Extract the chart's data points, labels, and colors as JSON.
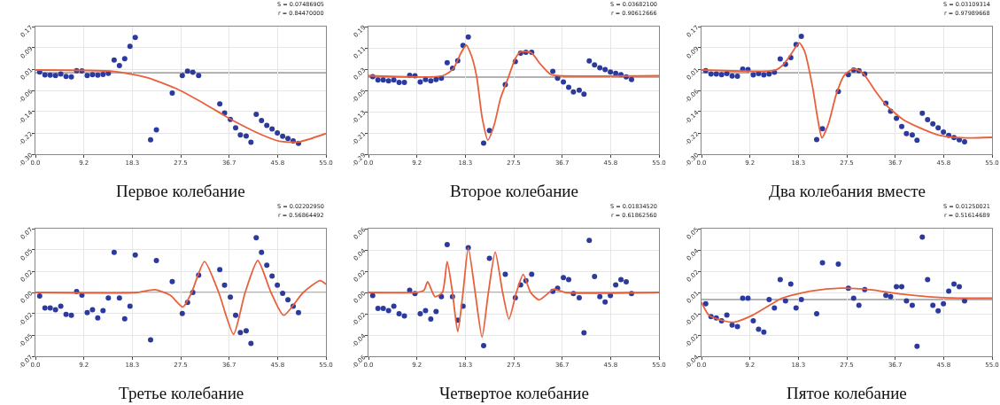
{
  "chart_data": [
    {
      "type": "scatter",
      "title": "Первое колебание",
      "annotations": [
        "S = 0.07486905",
        "r = 0.84470000"
      ],
      "xlim": [
        0,
        55
      ],
      "xticks": [
        {
          "value": 0,
          "label": "0.0"
        },
        {
          "value": 9.17,
          "label": "9.2"
        },
        {
          "value": 18.33,
          "label": "18.3"
        },
        {
          "value": 27.5,
          "label": "27.5"
        },
        {
          "value": 36.67,
          "label": "36.7"
        },
        {
          "value": 45.83,
          "label": "45.8"
        },
        {
          "value": 55,
          "label": "55.0"
        }
      ],
      "ylim": [
        -0.3,
        0.17
      ],
      "yticks": [
        {
          "value": 0.17,
          "label": "0.17"
        },
        {
          "value": 0.0917,
          "label": "0.09"
        },
        {
          "value": 0.0133,
          "label": "0.01"
        },
        {
          "value": -0.065,
          "label": "-0.06"
        },
        {
          "value": -0.1433,
          "label": "-0.14"
        },
        {
          "value": -0.2217,
          "label": "-0.22"
        },
        {
          "value": -0.3,
          "label": "-0.30"
        }
      ],
      "grid": true,
      "ref_lines": [
        {
          "axis": "y",
          "value": 0,
          "color": "#666666"
        }
      ],
      "series": [
        {
          "color": "#2b3a9c",
          "marker": "circle",
          "x": [
            0.8,
            1.8,
            2.8,
            3.8,
            4.8,
            5.8,
            6.8,
            7.8,
            8.8,
            9.8,
            10.8,
            11.8,
            12.8,
            13.8,
            14.9,
            15.9,
            16.9,
            17.9,
            18.9,
            21.8,
            22.9,
            25.9,
            27.8,
            28.8,
            29.8,
            30.9,
            34.9,
            35.8,
            36.9,
            37.9,
            38.8,
            39.9,
            40.8,
            41.8,
            42.8,
            43.8,
            44.8,
            45.8,
            46.8,
            47.8,
            48.8,
            49.8
          ],
          "values": [
            0.003,
            -0.008,
            -0.009,
            -0.01,
            -0.005,
            -0.014,
            -0.015,
            0.008,
            0.007,
            -0.01,
            -0.007,
            -0.009,
            -0.006,
            -0.002,
            0.047,
            0.026,
            0.052,
            0.097,
            0.13,
            -0.247,
            -0.21,
            -0.075,
            -0.01,
            0.006,
            0.002,
            -0.01,
            -0.115,
            -0.148,
            -0.172,
            -0.203,
            -0.229,
            -0.233,
            -0.256,
            -0.153,
            -0.176,
            -0.194,
            -0.207,
            -0.222,
            -0.234,
            -0.242,
            -0.251,
            -0.26
          ]
        },
        {
          "type": "line",
          "color": "#e8603c",
          "marker": "none",
          "x": [
            0,
            14.9,
            21,
            26.5,
            31.9,
            37.4,
            42.9,
            46.2,
            49.8,
            55
          ],
          "values": [
            0.01,
            0.005,
            -0.017,
            -0.057,
            -0.113,
            -0.176,
            -0.229,
            -0.252,
            -0.255,
            -0.224
          ]
        }
      ]
    },
    {
      "type": "scatter",
      "title": "Второе колебание",
      "annotations": [
        "S = 0.03682100",
        "r = 0.90612666"
      ],
      "xlim": [
        0,
        55
      ],
      "xticks": [
        {
          "value": 0,
          "label": "0.0"
        },
        {
          "value": 9.17,
          "label": "9.2"
        },
        {
          "value": 18.33,
          "label": "18.3"
        },
        {
          "value": 27.5,
          "label": "27.5"
        },
        {
          "value": 36.67,
          "label": "36.7"
        },
        {
          "value": 45.83,
          "label": "45.8"
        },
        {
          "value": 55,
          "label": "55.0"
        }
      ],
      "ylim": [
        -0.29,
        0.19
      ],
      "yticks": [
        0.19,
        0.11,
        0.03,
        -0.05,
        -0.13,
        -0.21,
        -0.29
      ],
      "grid": true,
      "ref_lines": [
        {
          "axis": "y",
          "value": 0,
          "color": "#666666"
        }
      ],
      "series": [
        {
          "color": "#2b3a9c",
          "marker": "circle",
          "x": [
            0.8,
            1.8,
            2.8,
            3.8,
            4.8,
            5.8,
            6.8,
            7.8,
            8.8,
            9.8,
            10.8,
            11.8,
            12.8,
            13.8,
            14.9,
            15.9,
            16.9,
            17.9,
            18.9,
            21.8,
            22.9,
            25.9,
            27.8,
            28.8,
            29.8,
            30.9,
            34.9,
            35.8,
            36.9,
            37.9,
            38.8,
            39.9,
            40.8,
            41.8,
            42.8,
            43.8,
            44.8,
            45.8,
            46.8,
            47.8,
            48.8,
            49.8
          ],
          "values": [
            0.002,
            -0.011,
            -0.011,
            -0.014,
            -0.011,
            -0.02,
            -0.02,
            0.007,
            0.005,
            -0.018,
            -0.009,
            -0.014,
            -0.009,
            -0.004,
            0.054,
            0.033,
            0.062,
            0.119,
            0.151,
            -0.248,
            -0.201,
            -0.028,
            0.058,
            0.09,
            0.093,
            0.093,
            0.022,
            -0.004,
            -0.018,
            -0.038,
            -0.056,
            -0.049,
            -0.064,
            0.061,
            0.046,
            0.035,
            0.028,
            0.019,
            0.014,
            0.009,
            0.001,
            -0.009
          ]
        },
        {
          "type": "line",
          "color": "#e8603c",
          "marker": "none",
          "x": [
            0,
            14,
            16,
            17.5,
            18.5,
            19.5,
            20.5,
            21.5,
            22.6,
            23.8,
            25,
            26.5,
            27.8,
            28.8,
            30.8,
            32.5,
            34.5,
            36,
            55
          ],
          "values": [
            0.005,
            0.005,
            0.03,
            0.09,
            0.12,
            0.08,
            0.0,
            -0.15,
            -0.237,
            -0.18,
            -0.08,
            0.0,
            0.07,
            0.095,
            0.092,
            0.05,
            0.01,
            0.005,
            0.005
          ]
        }
      ]
    },
    {
      "type": "scatter",
      "title": "Два колебания вместе",
      "annotations": [
        "S = 0.03109314",
        "r = 0.97989668"
      ],
      "xlim": [
        0,
        55
      ],
      "xticks": [
        {
          "value": 0,
          "label": "0.0"
        },
        {
          "value": 9.17,
          "label": "9.2"
        },
        {
          "value": 18.33,
          "label": "18.3"
        },
        {
          "value": 27.5,
          "label": "27.5"
        },
        {
          "value": 36.67,
          "label": "36.7"
        },
        {
          "value": 45.83,
          "label": "45.8"
        },
        {
          "value": 55,
          "label": "55.0"
        }
      ],
      "ylim": [
        -0.3,
        0.17
      ],
      "yticks": [
        {
          "value": 0.17,
          "label": "0.17"
        },
        {
          "value": 0.0917,
          "label": "0.09"
        },
        {
          "value": 0.0133,
          "label": "0.01"
        },
        {
          "value": -0.065,
          "label": "-0.06"
        },
        {
          "value": -0.1433,
          "label": "-0.14"
        },
        {
          "value": -0.2217,
          "label": "-0.22"
        },
        {
          "value": -0.3,
          "label": "-0.30"
        }
      ],
      "grid": true,
      "ref_lines": [
        {
          "axis": "y",
          "value": 0,
          "color": "#666666"
        }
      ],
      "series": [
        {
          "color": "#2b3a9c",
          "marker": "circle",
          "x": [
            0.8,
            1.8,
            2.8,
            3.8,
            4.8,
            5.8,
            6.8,
            7.8,
            8.8,
            9.8,
            10.8,
            11.8,
            12.8,
            13.8,
            14.9,
            15.9,
            16.9,
            17.9,
            18.9,
            21.8,
            22.9,
            25.9,
            27.8,
            28.8,
            29.8,
            30.9,
            34.9,
            35.8,
            36.9,
            37.9,
            38.8,
            39.9,
            40.8,
            41.8,
            42.8,
            43.8,
            44.8,
            45.8,
            46.8,
            47.8,
            48.8,
            49.8
          ],
          "values": [
            0.008,
            -0.005,
            -0.005,
            -0.007,
            -0.003,
            -0.012,
            -0.013,
            0.013,
            0.012,
            -0.008,
            -0.003,
            -0.008,
            -0.005,
            0.002,
            0.051,
            0.031,
            0.056,
            0.104,
            0.134,
            -0.246,
            -0.206,
            -0.069,
            -0.007,
            0.01,
            0.008,
            -0.005,
            -0.112,
            -0.142,
            -0.168,
            -0.198,
            -0.224,
            -0.229,
            -0.249,
            -0.149,
            -0.173,
            -0.188,
            -0.203,
            -0.218,
            -0.231,
            -0.239,
            -0.247,
            -0.254
          ]
        },
        {
          "type": "line",
          "color": "#e8603c",
          "marker": "none",
          "x": [
            0,
            14,
            15.5,
            17,
            18.5,
            19.5,
            21,
            22,
            22.8,
            24,
            25.5,
            27,
            28.8,
            30.5,
            33,
            35,
            38,
            41,
            45,
            50,
            55
          ],
          "values": [
            0.01,
            0.01,
            0.03,
            0.07,
            0.11,
            0.08,
            -0.05,
            -0.17,
            -0.24,
            -0.19,
            -0.08,
            -0.01,
            0.015,
            0.0,
            -0.07,
            -0.12,
            -0.17,
            -0.2,
            -0.23,
            -0.24,
            -0.238
          ]
        }
      ]
    },
    {
      "type": "scatter",
      "title": "Третье колебание",
      "annotations": [
        "S = 0.02202950",
        "r = 0.56864492"
      ],
      "xlim": [
        0,
        55
      ],
      "xticks": [
        {
          "value": 0,
          "label": "0.0"
        },
        {
          "value": 9.17,
          "label": "9.2"
        },
        {
          "value": 18.33,
          "label": "18.3"
        },
        {
          "value": 27.5,
          "label": "27.5"
        },
        {
          "value": 36.67,
          "label": "36.7"
        },
        {
          "value": 45.83,
          "label": "45.8"
        },
        {
          "value": 55,
          "label": "55.0"
        }
      ],
      "ylim": [
        -0.07,
        0.07
      ],
      "yticks": [
        {
          "value": 0.07,
          "label": "0.07"
        },
        {
          "value": 0.0467,
          "label": "0.05"
        },
        {
          "value": 0.0233,
          "label": "0.02"
        },
        {
          "value": 0,
          "label": "0.00"
        },
        {
          "value": -0.0233,
          "label": "-0.02"
        },
        {
          "value": -0.0467,
          "label": "-0.05"
        },
        {
          "value": -0.07,
          "label": "-0.07"
        }
      ],
      "grid": true,
      "ref_lines": [
        {
          "axis": "y",
          "value": 0,
          "color": "#666666"
        }
      ],
      "series": [
        {
          "color": "#2b3a9c",
          "marker": "circle",
          "x": [
            0.8,
            1.8,
            2.8,
            3.8,
            4.8,
            5.8,
            6.8,
            7.8,
            8.8,
            9.8,
            10.8,
            11.8,
            12.8,
            13.8,
            14.9,
            15.9,
            16.9,
            17.9,
            18.9,
            21.8,
            22.9,
            25.9,
            27.8,
            28.8,
            29.8,
            30.9,
            34.9,
            35.8,
            36.9,
            37.9,
            38.8,
            39.9,
            40.8,
            41.8,
            42.8,
            43.8,
            44.8,
            45.8,
            46.8,
            47.8,
            48.8,
            49.8
          ],
          "values": [
            -0.004,
            -0.017,
            -0.017,
            -0.019,
            -0.015,
            -0.024,
            -0.025,
            0.001,
            -0.003,
            -0.022,
            -0.019,
            -0.028,
            -0.02,
            -0.006,
            0.044,
            -0.006,
            -0.029,
            -0.015,
            0.041,
            -0.052,
            0.035,
            0.012,
            -0.023,
            -0.011,
            0.0,
            0.019,
            0.025,
            0.008,
            -0.005,
            -0.025,
            -0.044,
            -0.042,
            -0.056,
            0.06,
            0.044,
            0.03,
            0.018,
            0.008,
            -0.001,
            -0.008,
            -0.015,
            -0.022
          ]
        },
        {
          "type": "line",
          "color": "#e8603c",
          "marker": "none",
          "x": [
            0,
            19.3,
            22.6,
            25.5,
            27.9,
            29.5,
            32,
            34.7,
            37.5,
            39.7,
            42.1,
            44.6,
            47,
            50.7,
            53.9,
            55
          ],
          "values": [
            0.0,
            0.0,
            0.003,
            -0.003,
            -0.016,
            -0.001,
            0.034,
            0.0,
            -0.046,
            0.0,
            0.035,
            0.0,
            -0.025,
            0.0,
            0.013,
            0.009
          ]
        }
      ]
    },
    {
      "type": "scatter",
      "title": "Четвертое колебание",
      "annotations": [
        "S = 0.01834520",
        "r = 0.61862560"
      ],
      "xlim": [
        0,
        55
      ],
      "xticks": [
        {
          "value": 0,
          "label": "0.0"
        },
        {
          "value": 9.17,
          "label": "9.2"
        },
        {
          "value": 18.33,
          "label": "18.3"
        },
        {
          "value": 27.5,
          "label": "27.5"
        },
        {
          "value": 36.67,
          "label": "36.7"
        },
        {
          "value": 45.83,
          "label": "45.8"
        },
        {
          "value": 55,
          "label": "55.0"
        }
      ],
      "ylim": [
        -0.06,
        0.06
      ],
      "yticks": [
        {
          "value": 0.06,
          "label": "0.06"
        },
        {
          "value": 0.04,
          "label": "0.04"
        },
        {
          "value": 0.02,
          "label": "0.02"
        },
        {
          "value": 0,
          "label": "0.00"
        },
        {
          "value": -0.02,
          "label": "-0.02"
        },
        {
          "value": -0.04,
          "label": "-0.04"
        },
        {
          "value": -0.06,
          "label": "-0.06"
        }
      ],
      "grid": true,
      "ref_lines": [
        {
          "axis": "y",
          "value": 0,
          "color": "#666666"
        }
      ],
      "series": [
        {
          "color": "#2b3a9c",
          "marker": "circle",
          "x": [
            0.8,
            1.8,
            2.8,
            3.8,
            4.8,
            5.8,
            6.8,
            7.8,
            8.8,
            9.8,
            10.8,
            11.8,
            12.8,
            13.8,
            14.9,
            15.9,
            16.9,
            17.9,
            18.9,
            21.8,
            22.9,
            25.9,
            27.8,
            28.8,
            29.8,
            30.9,
            34.9,
            35.8,
            36.9,
            37.9,
            38.8,
            39.9,
            40.8,
            41.8,
            42.8,
            43.8,
            44.8,
            45.8,
            46.8,
            47.8,
            48.8,
            49.8
          ],
          "values": [
            -0.003,
            -0.015,
            -0.015,
            -0.017,
            -0.013,
            -0.02,
            -0.022,
            0.002,
            -0.001,
            -0.02,
            -0.017,
            -0.025,
            -0.018,
            -0.004,
            0.045,
            -0.004,
            -0.026,
            -0.013,
            0.042,
            -0.05,
            0.032,
            0.017,
            -0.005,
            0.007,
            0.011,
            0.017,
            0.001,
            0.004,
            0.014,
            0.012,
            -0.001,
            -0.005,
            -0.038,
            0.049,
            0.015,
            -0.004,
            -0.009,
            -0.003,
            0.007,
            0.012,
            0.01,
            -0.001
          ]
        },
        {
          "type": "line",
          "color": "#e8603c",
          "marker": "none",
          "x": [
            0,
            9,
            10.5,
            11.2,
            12.6,
            14,
            14.9,
            15.9,
            16.9,
            17.9,
            18.9,
            20.2,
            21.5,
            22.7,
            24,
            25.4,
            26.6,
            28,
            29.3,
            30.7,
            32.3,
            35.1,
            37.3,
            55
          ],
          "values": [
            0.0,
            0.0,
            0.002,
            0.01,
            -0.004,
            0.0,
            0.029,
            0.0,
            -0.037,
            0.0,
            0.042,
            0.0,
            -0.042,
            0.0,
            0.038,
            0.0,
            -0.025,
            0.0,
            0.017,
            0.0,
            -0.007,
            0.003,
            0.0,
            0.0
          ]
        }
      ]
    },
    {
      "type": "scatter",
      "title": "Пятое колебание",
      "annotations": [
        "S = 0.01250021",
        "r = 0.51614689"
      ],
      "xlim": [
        0,
        55
      ],
      "xticks": [
        {
          "value": 0,
          "label": "0.0"
        },
        {
          "value": 9.17,
          "label": "9.2"
        },
        {
          "value": 18.33,
          "label": "18.3"
        },
        {
          "value": 27.5,
          "label": "27.5"
        },
        {
          "value": 36.67,
          "label": "36.7"
        },
        {
          "value": 45.83,
          "label": "45.8"
        },
        {
          "value": 55,
          "label": "55.0"
        }
      ],
      "ylim": [
        -0.04,
        0.05
      ],
      "yticks": [
        {
          "value": 0.05,
          "label": "0.05"
        },
        {
          "value": 0.035,
          "label": "0.04"
        },
        {
          "value": 0.02,
          "label": "0.02"
        },
        {
          "value": 0.005,
          "label": "0.01"
        },
        {
          "value": -0.01,
          "label": "-0.01"
        },
        {
          "value": -0.025,
          "label": "-0.02"
        },
        {
          "value": -0.04,
          "label": "-0.04"
        }
      ],
      "grid": true,
      "ref_lines": [
        {
          "axis": "y",
          "value": 0,
          "color": "#666666"
        }
      ],
      "series": [
        {
          "color": "#2b3a9c",
          "marker": "circle",
          "x": [
            0.8,
            1.8,
            2.8,
            3.8,
            4.8,
            5.8,
            6.8,
            7.8,
            8.8,
            9.8,
            10.8,
            11.8,
            12.8,
            13.8,
            14.9,
            15.9,
            16.9,
            17.9,
            18.9,
            21.8,
            22.9,
            25.9,
            27.8,
            28.8,
            29.8,
            30.9,
            34.9,
            35.8,
            36.9,
            37.9,
            38.8,
            39.9,
            40.8,
            41.8,
            42.8,
            43.8,
            44.8,
            45.8,
            46.8,
            47.8,
            48.8,
            49.8
          ],
          "values": [
            -0.003,
            -0.012,
            -0.013,
            -0.015,
            -0.011,
            -0.018,
            -0.019,
            0.001,
            0.001,
            -0.015,
            -0.021,
            -0.023,
            0.0,
            -0.006,
            0.014,
            -0.001,
            0.011,
            -0.006,
            0.0,
            -0.01,
            0.026,
            0.025,
            0.008,
            0.001,
            -0.004,
            0.007,
            0.003,
            0.002,
            0.009,
            0.009,
            -0.001,
            -0.004,
            -0.033,
            0.044,
            0.014,
            -0.004,
            -0.008,
            -0.003,
            0.006,
            0.011,
            0.009,
            -0.001
          ]
        },
        {
          "type": "line",
          "color": "#e8603c",
          "marker": "none",
          "x": [
            0,
            1.4,
            4.2,
            6.1,
            9.7,
            15.3,
            20.8,
            26.4,
            31.9,
            37.5,
            43,
            48.6,
            55
          ],
          "values": [
            -0.002,
            -0.011,
            -0.015,
            -0.016,
            -0.011,
            0.001,
            0.006,
            0.008,
            0.007,
            0.004,
            0.002,
            0.001,
            0.001
          ]
        }
      ]
    }
  ]
}
